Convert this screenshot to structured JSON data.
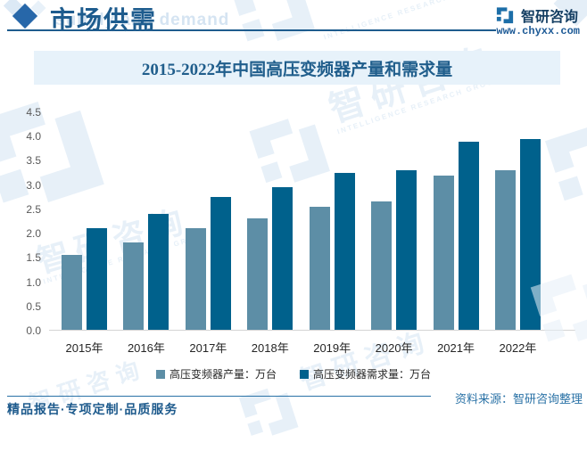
{
  "header": {
    "section_title": "市场供需",
    "section_subtitle_en": "supply and demand",
    "brand_name": "智研咨询",
    "brand_url": "www.chyxx.com"
  },
  "watermark": {
    "brand": "智研咨询",
    "tagline": "INTELLIGENCE RESEARCH GROUP"
  },
  "chart_data": {
    "type": "bar",
    "title": "2015-2022年中国高压变频器产量和需求量",
    "categories": [
      "2015年",
      "2016年",
      "2017年",
      "2018年",
      "2019年",
      "2020年",
      "2021年",
      "2022年"
    ],
    "series": [
      {
        "name": "高压变频器产量：万台",
        "color": "#5d8ea6",
        "values": [
          1.55,
          1.8,
          2.1,
          2.3,
          2.55,
          2.65,
          3.2,
          3.3
        ]
      },
      {
        "name": "高压变频器需求量：万台",
        "color": "#00618c",
        "values": [
          2.1,
          2.4,
          2.75,
          2.95,
          3.25,
          3.3,
          3.9,
          3.95
        ]
      }
    ],
    "xlabel": "",
    "ylabel": "",
    "ylim": [
      0,
      4.5
    ],
    "yticks": [
      0,
      0.5,
      1,
      1.5,
      2,
      2.5,
      3,
      3.5,
      4,
      4.5
    ],
    "grid": false,
    "legend_position": "bottom"
  },
  "footer": {
    "source": "资料来源：智研咨询整理",
    "slogan": "精品报告·专项定制·品质服务"
  },
  "colors": {
    "accent": "#1e5c8e",
    "production_bar": "#5d8ea6",
    "demand_bar": "#00618c",
    "title_band_bg": "#e7f2fa"
  }
}
